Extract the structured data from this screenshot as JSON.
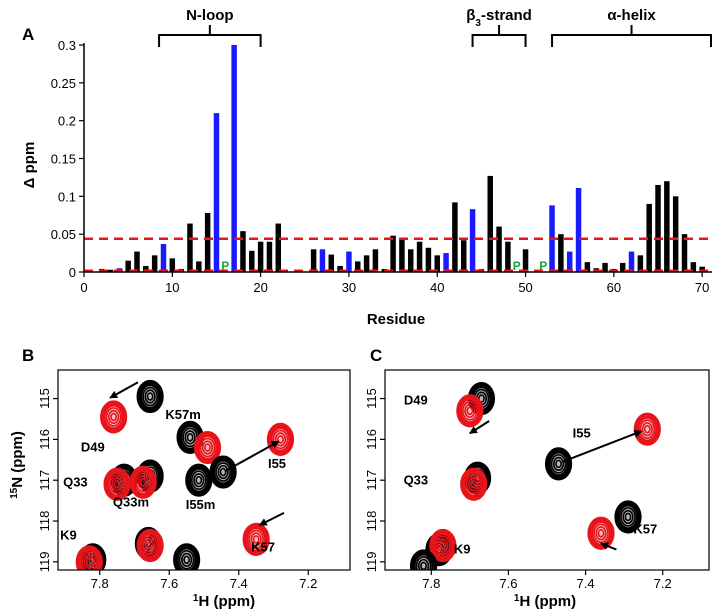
{
  "colors": {
    "normal": "#000000",
    "highlight": "#1a1aff",
    "threshold": "#e8141c",
    "proline": "#1aa33a",
    "free": "#000000",
    "bound": "#e8141c"
  },
  "chart_data": [
    {
      "type": "bar",
      "panel": "A",
      "title": "",
      "xlabel": "Residue",
      "ylabel": "Δ ppm",
      "xlim": [
        0,
        71
      ],
      "ylim": [
        0,
        0.3
      ],
      "xticks": [
        "0",
        "10",
        "20",
        "30",
        "40",
        "50",
        "60",
        "70"
      ],
      "yticks": [
        "0",
        "0.05",
        "0.1",
        "0.15",
        "0.2",
        "0.25",
        "0.3"
      ],
      "threshold": 0.044,
      "regions": [
        {
          "label": "N-loop",
          "start": 8.5,
          "end": 20
        },
        {
          "label": "β3-strand",
          "start": 44,
          "end": 50
        },
        {
          "label": "α-helix",
          "start": 53,
          "end": 71
        }
      ],
      "proline_label": "P",
      "prolines": [
        16,
        49,
        52
      ],
      "bars": [
        {
          "residue": 2,
          "value": 0.004,
          "color": "black"
        },
        {
          "residue": 3,
          "value": 0.003,
          "color": "black"
        },
        {
          "residue": 4,
          "value": 0.005,
          "color": "blue"
        },
        {
          "residue": 5,
          "value": 0.015,
          "color": "black"
        },
        {
          "residue": 6,
          "value": 0.027,
          "color": "black"
        },
        {
          "residue": 7,
          "value": 0.008,
          "color": "black"
        },
        {
          "residue": 8,
          "value": 0.022,
          "color": "black"
        },
        {
          "residue": 9,
          "value": 0.037,
          "color": "blue"
        },
        {
          "residue": 10,
          "value": 0.018,
          "color": "black"
        },
        {
          "residue": 11,
          "value": 0.004,
          "color": "black"
        },
        {
          "residue": 12,
          "value": 0.064,
          "color": "black"
        },
        {
          "residue": 13,
          "value": 0.014,
          "color": "black"
        },
        {
          "residue": 14,
          "value": 0.078,
          "color": "black"
        },
        {
          "residue": 15,
          "value": 0.21,
          "color": "blue"
        },
        {
          "residue": 17,
          "value": 0.3,
          "color": "blue"
        },
        {
          "residue": 18,
          "value": 0.054,
          "color": "black"
        },
        {
          "residue": 19,
          "value": 0.028,
          "color": "black"
        },
        {
          "residue": 20,
          "value": 0.04,
          "color": "black"
        },
        {
          "residue": 21,
          "value": 0.04,
          "color": "black"
        },
        {
          "residue": 22,
          "value": 0.064,
          "color": "black"
        },
        {
          "residue": 26,
          "value": 0.03,
          "color": "black"
        },
        {
          "residue": 27,
          "value": 0.03,
          "color": "blue"
        },
        {
          "residue": 28,
          "value": 0.023,
          "color": "black"
        },
        {
          "residue": 29,
          "value": 0.008,
          "color": "black"
        },
        {
          "residue": 30,
          "value": 0.027,
          "color": "blue"
        },
        {
          "residue": 31,
          "value": 0.014,
          "color": "black"
        },
        {
          "residue": 32,
          "value": 0.022,
          "color": "black"
        },
        {
          "residue": 33,
          "value": 0.03,
          "color": "black"
        },
        {
          "residue": 34,
          "value": 0.004,
          "color": "black"
        },
        {
          "residue": 35,
          "value": 0.048,
          "color": "black"
        },
        {
          "residue": 36,
          "value": 0.043,
          "color": "black"
        },
        {
          "residue": 37,
          "value": 0.03,
          "color": "black"
        },
        {
          "residue": 38,
          "value": 0.04,
          "color": "black"
        },
        {
          "residue": 39,
          "value": 0.032,
          "color": "black"
        },
        {
          "residue": 40,
          "value": 0.022,
          "color": "black"
        },
        {
          "residue": 41,
          "value": 0.025,
          "color": "blue"
        },
        {
          "residue": 42,
          "value": 0.092,
          "color": "black"
        },
        {
          "residue": 43,
          "value": 0.042,
          "color": "black"
        },
        {
          "residue": 44,
          "value": 0.083,
          "color": "blue"
        },
        {
          "residue": 45,
          "value": 0.004,
          "color": "blue"
        },
        {
          "residue": 46,
          "value": 0.127,
          "color": "black"
        },
        {
          "residue": 47,
          "value": 0.06,
          "color": "black"
        },
        {
          "residue": 48,
          "value": 0.04,
          "color": "black"
        },
        {
          "residue": 50,
          "value": 0.03,
          "color": "black"
        },
        {
          "residue": 53,
          "value": 0.088,
          "color": "blue"
        },
        {
          "residue": 54,
          "value": 0.05,
          "color": "black"
        },
        {
          "residue": 55,
          "value": 0.027,
          "color": "blue"
        },
        {
          "residue": 56,
          "value": 0.111,
          "color": "blue"
        },
        {
          "residue": 57,
          "value": 0.013,
          "color": "black"
        },
        {
          "residue": 58,
          "value": 0.005,
          "color": "black"
        },
        {
          "residue": 59,
          "value": 0.012,
          "color": "black"
        },
        {
          "residue": 60,
          "value": 0.004,
          "color": "black"
        },
        {
          "residue": 61,
          "value": 0.012,
          "color": "black"
        },
        {
          "residue": 62,
          "value": 0.027,
          "color": "blue"
        },
        {
          "residue": 63,
          "value": 0.022,
          "color": "black"
        },
        {
          "residue": 64,
          "value": 0.09,
          "color": "black"
        },
        {
          "residue": 65,
          "value": 0.115,
          "color": "black"
        },
        {
          "residue": 66,
          "value": 0.12,
          "color": "black"
        },
        {
          "residue": 67,
          "value": 0.1,
          "color": "black"
        },
        {
          "residue": 68,
          "value": 0.05,
          "color": "black"
        },
        {
          "residue": 69,
          "value": 0.013,
          "color": "black"
        },
        {
          "residue": 70,
          "value": 0.007,
          "color": "black"
        }
      ]
    },
    {
      "type": "scatter",
      "panel": "B",
      "xlabel": "1H (ppm)",
      "ylabel": "15N (ppm)",
      "xlim": [
        7.92,
        7.08
      ],
      "ylim": [
        114.3,
        119.2
      ],
      "xticks": [
        "7.8",
        "7.6",
        "7.4",
        "7.2"
      ],
      "yticks": [
        "115",
        "116",
        "117",
        "118",
        "119"
      ],
      "peaks": [
        {
          "id": "D49",
          "label": "D49",
          "label_at": [
            7.82,
            116.3
          ],
          "free": [
            7.655,
            114.95
          ],
          "bound": [
            7.76,
            115.45
          ],
          "arrow": {
            "from": [
              7.69,
              114.6
            ],
            "to": [
              7.77,
              114.98
            ]
          }
        },
        {
          "id": "Q33",
          "label": "Q33",
          "label_at": [
            7.87,
            117.15
          ],
          "free": [
            7.73,
            117.0
          ],
          "bound": [
            7.75,
            117.1
          ]
        },
        {
          "id": "Q33m",
          "label": "Q33m",
          "label_at": [
            7.71,
            117.65
          ],
          "free": [
            7.655,
            116.9
          ],
          "bound": [
            7.675,
            117.05
          ]
        },
        {
          "id": "K57m",
          "label": "K57m",
          "label_at": [
            7.56,
            115.5
          ],
          "free": [
            7.54,
            115.95
          ],
          "bound": [
            7.49,
            116.2
          ]
        },
        {
          "id": "I55m",
          "label": "I55m",
          "label_at": [
            7.51,
            117.7
          ],
          "free": [
            7.515,
            117.0
          ],
          "bound": null
        },
        {
          "id": "I55",
          "label": "I55",
          "label_at": [
            7.29,
            116.7
          ],
          "free": [
            7.445,
            116.8
          ],
          "bound": [
            7.28,
            116.0
          ],
          "arrow": {
            "from": [
              7.44,
              116.78
            ],
            "to": [
              7.285,
              116.05
            ]
          }
        },
        {
          "id": "K57",
          "label": "K57",
          "label_at": [
            7.33,
            118.75
          ],
          "free": null,
          "bound": [
            7.35,
            118.45
          ],
          "arrow": {
            "from": [
              7.27,
              117.8
            ],
            "to": [
              7.34,
              118.1
            ]
          }
        },
        {
          "id": "K9",
          "label": "K9",
          "label_at": [
            7.89,
            118.45
          ],
          "free": [
            7.82,
            118.95
          ],
          "bound": [
            7.83,
            119.0
          ]
        },
        {
          "id": "extra1",
          "label": "",
          "free": [
            7.66,
            118.55
          ],
          "bound": [
            7.655,
            118.6
          ]
        },
        {
          "id": "extra2",
          "label": "",
          "free": [
            7.55,
            118.95
          ],
          "bound": null
        }
      ]
    },
    {
      "type": "scatter",
      "panel": "C",
      "xlabel": "1H (ppm)",
      "ylabel": "",
      "xlim": [
        7.92,
        7.08
      ],
      "ylim": [
        114.3,
        119.2
      ],
      "xticks": [
        "7.8",
        "7.6",
        "7.4",
        "7.2"
      ],
      "yticks": [
        "115",
        "116",
        "117",
        "118",
        "119"
      ],
      "peaks": [
        {
          "id": "D49",
          "label": "D49",
          "label_at": [
            7.84,
            115.15
          ],
          "free": [
            7.67,
            115.0
          ],
          "bound": [
            7.7,
            115.3
          ],
          "arrow": {
            "from": [
              7.65,
              115.55
            ],
            "to": [
              7.7,
              115.85
            ]
          }
        },
        {
          "id": "I55",
          "label": "I55",
          "label_at": [
            7.41,
            115.95
          ],
          "free": [
            7.47,
            116.6
          ],
          "bound": [
            7.24,
            115.75
          ],
          "arrow": {
            "from": [
              7.46,
              116.55
            ],
            "to": [
              7.255,
              115.8
            ]
          }
        },
        {
          "id": "Q33",
          "label": "Q33",
          "label_at": [
            7.84,
            117.1
          ],
          "free": [
            7.68,
            116.95
          ],
          "bound": [
            7.69,
            117.1
          ]
        },
        {
          "id": "K57",
          "label": "K57",
          "label_at": [
            7.245,
            118.3
          ],
          "free": [
            7.29,
            117.9
          ],
          "bound": [
            7.36,
            118.3
          ],
          "arrow": {
            "from": [
              7.32,
              118.7
            ],
            "to": [
              7.36,
              118.55
            ]
          }
        },
        {
          "id": "K9",
          "label": "K9",
          "label_at": [
            7.72,
            118.8
          ],
          "free": [
            7.78,
            118.7
          ],
          "bound": [
            7.77,
            118.6
          ]
        },
        {
          "id": "K9b",
          "label": "",
          "free": [
            7.82,
            119.1
          ],
          "bound": null
        }
      ]
    }
  ]
}
